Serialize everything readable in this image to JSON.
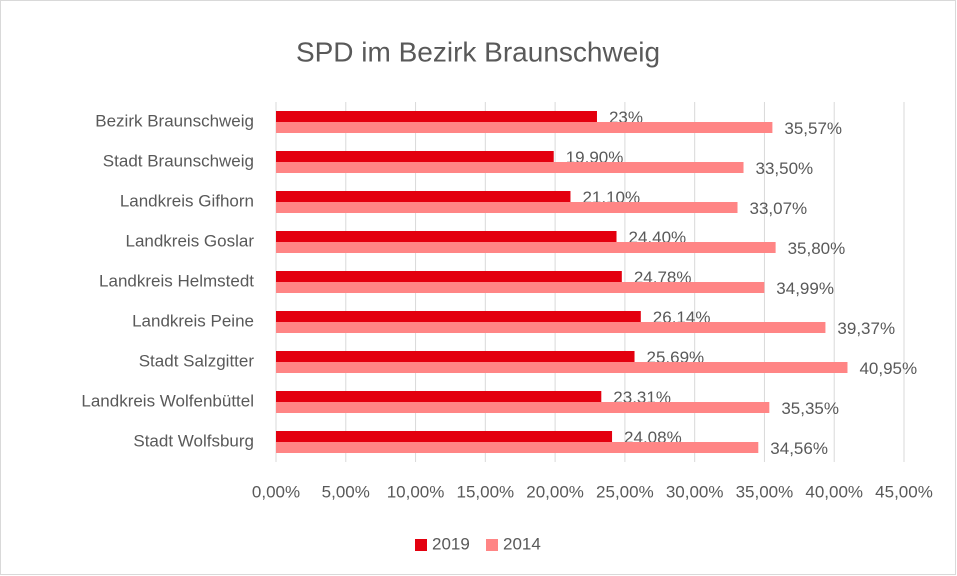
{
  "chart_data": {
    "type": "hbar",
    "title": "SPD im Bezirk Braunschweig",
    "categories": [
      "Bezirk Braunschweig",
      "Stadt Braunschweig",
      "Landkreis Gifhorn",
      "Landkreis Goslar",
      "Landkreis Helmstedt",
      "Landkreis Peine",
      "Stadt Salzgitter",
      "Landkreis Wolfenbüttel",
      "Stadt Wolfsburg"
    ],
    "series": [
      {
        "name": "2019",
        "color": "#e3000f",
        "values": [
          23,
          19.9,
          21.1,
          24.4,
          24.78,
          26.14,
          25.69,
          23.31,
          24.08
        ],
        "value_labels": [
          "23%",
          "19,90%",
          "21,10%",
          "24,40%",
          "24,78%",
          "26,14%",
          "25,69%",
          "23,31%",
          "24,08%"
        ]
      },
      {
        "name": "2014",
        "color": "#ff8585",
        "values": [
          35.57,
          33.5,
          33.07,
          35.8,
          34.99,
          39.37,
          40.95,
          35.35,
          34.56
        ],
        "value_labels": [
          "35,57%",
          "33,50%",
          "33,07%",
          "35,80%",
          "34,99%",
          "39,37%",
          "40,95%",
          "35,35%",
          "34,56%"
        ]
      }
    ],
    "xlim": [
      0,
      45
    ],
    "xticks": [
      {
        "value": 0,
        "label": "0,00%"
      },
      {
        "value": 5,
        "label": "5,00%"
      },
      {
        "value": 10,
        "label": "10,00%"
      },
      {
        "value": 15,
        "label": "15,00%"
      },
      {
        "value": 20,
        "label": "20,00%"
      },
      {
        "value": 25,
        "label": "25,00%"
      },
      {
        "value": 30,
        "label": "30,00%"
      },
      {
        "value": 35,
        "label": "35,00%"
      },
      {
        "value": 40,
        "label": "40,00%"
      },
      {
        "value": 45,
        "label": "45,00%"
      }
    ],
    "grid": true,
    "legend": "bottom"
  }
}
